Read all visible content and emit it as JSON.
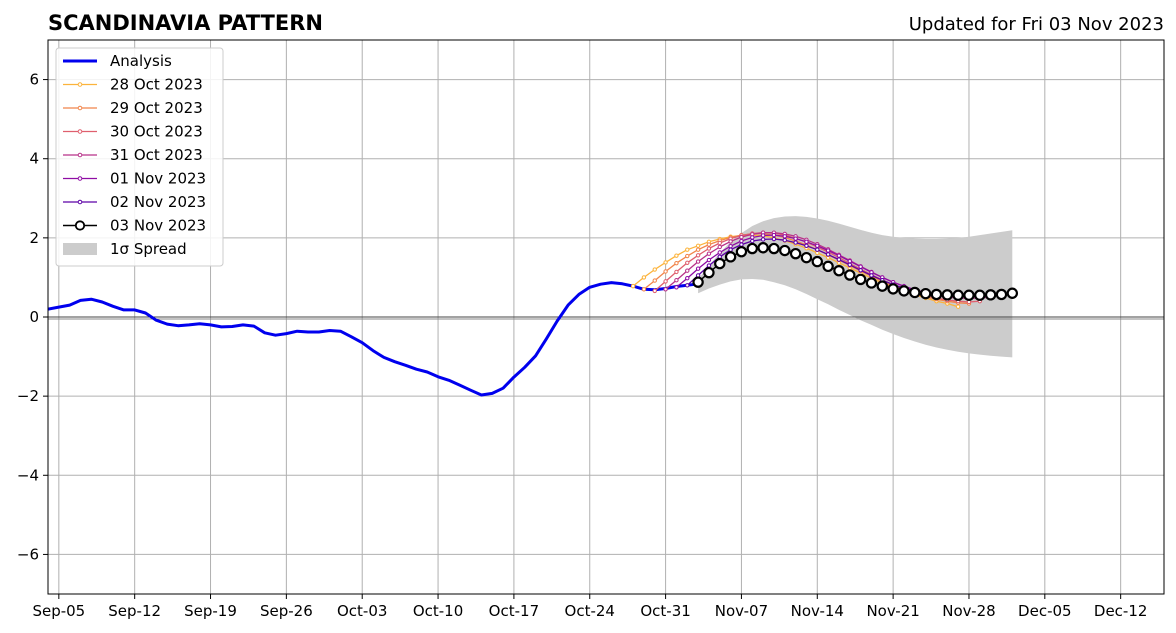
{
  "chart_data": {
    "type": "line",
    "title": "SCANDINAVIA PATTERN",
    "subtitle": "Updated for Fri 03 Nov 2023",
    "xlabel": "",
    "ylabel": "",
    "x_axis": {
      "type": "date",
      "range": [
        "2023-09-04",
        "2023-12-16"
      ],
      "ticks": [
        {
          "date": "2023-09-05",
          "label": "Sep-05"
        },
        {
          "date": "2023-09-12",
          "label": "Sep-12"
        },
        {
          "date": "2023-09-19",
          "label": "Sep-19"
        },
        {
          "date": "2023-09-26",
          "label": "Sep-26"
        },
        {
          "date": "2023-10-03",
          "label": "Oct-03"
        },
        {
          "date": "2023-10-10",
          "label": "Oct-10"
        },
        {
          "date": "2023-10-17",
          "label": "Oct-17"
        },
        {
          "date": "2023-10-24",
          "label": "Oct-24"
        },
        {
          "date": "2023-10-31",
          "label": "Oct-31"
        },
        {
          "date": "2023-11-07",
          "label": "Nov-07"
        },
        {
          "date": "2023-11-14",
          "label": "Nov-14"
        },
        {
          "date": "2023-11-21",
          "label": "Nov-21"
        },
        {
          "date": "2023-11-28",
          "label": "Nov-28"
        },
        {
          "date": "2023-12-05",
          "label": "Dec-05"
        },
        {
          "date": "2023-12-12",
          "label": "Dec-12"
        }
      ]
    },
    "y_axis": {
      "range": [
        -7,
        7
      ],
      "ticks": [
        {
          "value": -6,
          "label": "−6"
        },
        {
          "value": -4,
          "label": "−4"
        },
        {
          "value": -2,
          "label": "−2"
        },
        {
          "value": 0,
          "label": "0"
        },
        {
          "value": 2,
          "label": "2"
        },
        {
          "value": 4,
          "label": "4"
        },
        {
          "value": 6,
          "label": "6"
        }
      ]
    },
    "grid": true,
    "zero_line": true,
    "legend_position": "top-left",
    "legend": [
      {
        "label": "Analysis",
        "color": "#0000ee",
        "style": "line"
      },
      {
        "label": "28 Oct 2023",
        "color": "#fcb33b",
        "style": "dot-line"
      },
      {
        "label": "29 Oct 2023",
        "color": "#f1854b",
        "style": "dot-line"
      },
      {
        "label": "30 Oct 2023",
        "color": "#df5f6e",
        "style": "dot-line"
      },
      {
        "label": "31 Oct 2023",
        "color": "#b83289",
        "style": "dot-line"
      },
      {
        "label": "01 Nov 2023",
        "color": "#8f0da4",
        "style": "dot-line"
      },
      {
        "label": "02 Nov 2023",
        "color": "#5c01a6",
        "style": "dot-line"
      },
      {
        "label": "03 Nov 2023",
        "color": "#000000",
        "style": "circle-line"
      },
      {
        "label": "1σ Spread",
        "color": "#cccccc",
        "style": "patch"
      }
    ],
    "series": [
      {
        "name": "Analysis",
        "color": "#0000ee",
        "x": [
          "2023-09-04",
          "2023-09-05",
          "2023-09-06",
          "2023-09-07",
          "2023-09-08",
          "2023-09-09",
          "2023-09-10",
          "2023-09-11",
          "2023-09-12",
          "2023-09-13",
          "2023-09-14",
          "2023-09-15",
          "2023-09-16",
          "2023-09-17",
          "2023-09-18",
          "2023-09-19",
          "2023-09-20",
          "2023-09-21",
          "2023-09-22",
          "2023-09-23",
          "2023-09-24",
          "2023-09-25",
          "2023-09-26",
          "2023-09-27",
          "2023-09-28",
          "2023-09-29",
          "2023-09-30",
          "2023-10-01",
          "2023-10-02",
          "2023-10-03",
          "2023-10-04",
          "2023-10-05",
          "2023-10-06",
          "2023-10-07",
          "2023-10-08",
          "2023-10-09",
          "2023-10-10",
          "2023-10-11",
          "2023-10-12",
          "2023-10-13",
          "2023-10-14",
          "2023-10-15",
          "2023-10-16",
          "2023-10-17",
          "2023-10-18",
          "2023-10-19",
          "2023-10-20",
          "2023-10-21",
          "2023-10-22",
          "2023-10-23",
          "2023-10-24",
          "2023-10-25",
          "2023-10-26",
          "2023-10-27",
          "2023-10-28",
          "2023-10-29",
          "2023-10-30",
          "2023-10-31",
          "2023-11-01",
          "2023-11-02",
          "2023-11-03"
        ],
        "y": [
          0.2,
          0.25,
          0.3,
          0.42,
          0.45,
          0.38,
          0.27,
          0.18,
          0.18,
          0.1,
          -0.08,
          -0.18,
          -0.22,
          -0.2,
          -0.17,
          -0.2,
          -0.25,
          -0.24,
          -0.2,
          -0.23,
          -0.4,
          -0.46,
          -0.42,
          -0.36,
          -0.38,
          -0.38,
          -0.34,
          -0.36,
          -0.5,
          -0.65,
          -0.85,
          -1.02,
          -1.13,
          -1.22,
          -1.32,
          -1.39,
          -1.51,
          -1.6,
          -1.72,
          -1.85,
          -1.97,
          -1.93,
          -1.8,
          -1.52,
          -1.27,
          -0.98,
          -0.55,
          -0.1,
          0.3,
          0.57,
          0.75,
          0.83,
          0.87,
          0.84,
          0.78,
          0.7,
          0.69,
          0.72,
          0.77,
          0.8,
          0.84
        ]
      },
      {
        "name": "28 Oct 2023",
        "color": "#fcb33b",
        "x": [
          "2023-10-28",
          "2023-10-29",
          "2023-10-30",
          "2023-10-31",
          "2023-11-01",
          "2023-11-02",
          "2023-11-03",
          "2023-11-04",
          "2023-11-05",
          "2023-11-06",
          "2023-11-07",
          "2023-11-08",
          "2023-11-09",
          "2023-11-10",
          "2023-11-11",
          "2023-11-12",
          "2023-11-13",
          "2023-11-14",
          "2023-11-15",
          "2023-11-16",
          "2023-11-17",
          "2023-11-18",
          "2023-11-19",
          "2023-11-20",
          "2023-11-21",
          "2023-11-22",
          "2023-11-23",
          "2023-11-24",
          "2023-11-25",
          "2023-11-26",
          "2023-11-27"
        ],
        "y": [
          0.78,
          1.0,
          1.2,
          1.38,
          1.55,
          1.7,
          1.8,
          1.9,
          1.97,
          2.03,
          2.06,
          2.07,
          2.05,
          2.0,
          1.93,
          1.84,
          1.74,
          1.62,
          1.5,
          1.37,
          1.24,
          1.11,
          0.98,
          0.86,
          0.75,
          0.65,
          0.56,
          0.48,
          0.4,
          0.34,
          0.26
        ]
      },
      {
        "name": "29 Oct 2023",
        "color": "#f1854b",
        "x": [
          "2023-10-29",
          "2023-10-30",
          "2023-10-31",
          "2023-11-01",
          "2023-11-02",
          "2023-11-03",
          "2023-11-04",
          "2023-11-05",
          "2023-11-06",
          "2023-11-07",
          "2023-11-08",
          "2023-11-09",
          "2023-11-10",
          "2023-11-11",
          "2023-11-12",
          "2023-11-13",
          "2023-11-14",
          "2023-11-15",
          "2023-11-16",
          "2023-11-17",
          "2023-11-18",
          "2023-11-19",
          "2023-11-20",
          "2023-11-21",
          "2023-11-22",
          "2023-11-23",
          "2023-11-24",
          "2023-11-25",
          "2023-11-26",
          "2023-11-27",
          "2023-11-28"
        ],
        "y": [
          0.7,
          0.92,
          1.15,
          1.36,
          1.54,
          1.7,
          1.83,
          1.93,
          2.01,
          2.07,
          2.1,
          2.1,
          2.07,
          2.01,
          1.92,
          1.82,
          1.7,
          1.57,
          1.44,
          1.3,
          1.16,
          1.03,
          0.9,
          0.78,
          0.68,
          0.59,
          0.51,
          0.45,
          0.4,
          0.36,
          0.34
        ]
      },
      {
        "name": "30 Oct 2023",
        "color": "#df5f6e",
        "x": [
          "2023-10-30",
          "2023-10-31",
          "2023-11-01",
          "2023-11-02",
          "2023-11-03",
          "2023-11-04",
          "2023-11-05",
          "2023-11-06",
          "2023-11-07",
          "2023-11-08",
          "2023-11-09",
          "2023-11-10",
          "2023-11-11",
          "2023-11-12",
          "2023-11-13",
          "2023-11-14",
          "2023-11-15",
          "2023-11-16",
          "2023-11-17",
          "2023-11-18",
          "2023-11-19",
          "2023-11-20",
          "2023-11-21",
          "2023-11-22",
          "2023-11-23",
          "2023-11-24",
          "2023-11-25",
          "2023-11-26",
          "2023-11-27",
          "2023-11-28",
          "2023-11-29"
        ],
        "y": [
          0.66,
          0.9,
          1.14,
          1.37,
          1.56,
          1.73,
          1.87,
          1.98,
          2.06,
          2.11,
          2.13,
          2.12,
          2.07,
          1.99,
          1.89,
          1.77,
          1.64,
          1.5,
          1.35,
          1.21,
          1.07,
          0.94,
          0.82,
          0.71,
          0.62,
          0.54,
          0.48,
          0.43,
          0.4,
          0.38,
          0.4
        ]
      },
      {
        "name": "31 Oct 2023",
        "color": "#b83289",
        "x": [
          "2023-10-31",
          "2023-11-01",
          "2023-11-02",
          "2023-11-03",
          "2023-11-04",
          "2023-11-05",
          "2023-11-06",
          "2023-11-07",
          "2023-11-08",
          "2023-11-09",
          "2023-11-10",
          "2023-11-11",
          "2023-11-12",
          "2023-11-13",
          "2023-11-14",
          "2023-11-15",
          "2023-11-16",
          "2023-11-17",
          "2023-11-18",
          "2023-11-19",
          "2023-11-20",
          "2023-11-21",
          "2023-11-22",
          "2023-11-23",
          "2023-11-24",
          "2023-11-25",
          "2023-11-26",
          "2023-11-27",
          "2023-11-28",
          "2023-11-29",
          "2023-11-30"
        ],
        "y": [
          0.7,
          0.93,
          1.17,
          1.4,
          1.6,
          1.77,
          1.91,
          2.02,
          2.09,
          2.13,
          2.13,
          2.1,
          2.04,
          1.95,
          1.84,
          1.71,
          1.57,
          1.43,
          1.28,
          1.14,
          1.0,
          0.88,
          0.77,
          0.67,
          0.6,
          0.54,
          0.5,
          0.48,
          0.47,
          0.48,
          0.5
        ]
      },
      {
        "name": "01 Nov 2023",
        "color": "#8f0da4",
        "x": [
          "2023-11-01",
          "2023-11-02",
          "2023-11-03",
          "2023-11-04",
          "2023-11-05",
          "2023-11-06",
          "2023-11-07",
          "2023-11-08",
          "2023-11-09",
          "2023-11-10",
          "2023-11-11",
          "2023-11-12",
          "2023-11-13",
          "2023-11-14",
          "2023-11-15",
          "2023-11-16",
          "2023-11-17",
          "2023-11-18",
          "2023-11-19",
          "2023-11-20",
          "2023-11-21",
          "2023-11-22",
          "2023-11-23",
          "2023-11-24",
          "2023-11-25",
          "2023-11-26",
          "2023-11-27",
          "2023-11-28",
          "2023-11-29",
          "2023-11-30",
          "2023-12-01"
        ],
        "y": [
          0.75,
          0.98,
          1.22,
          1.44,
          1.63,
          1.79,
          1.92,
          2.01,
          2.06,
          2.07,
          2.04,
          1.98,
          1.9,
          1.8,
          1.68,
          1.55,
          1.41,
          1.27,
          1.13,
          1.0,
          0.88,
          0.78,
          0.69,
          0.62,
          0.57,
          0.54,
          0.52,
          0.52,
          0.53,
          0.55,
          0.57
        ]
      },
      {
        "name": "02 Nov 2023",
        "color": "#5c01a6",
        "x": [
          "2023-11-02",
          "2023-11-03",
          "2023-11-04",
          "2023-11-05",
          "2023-11-06",
          "2023-11-07",
          "2023-11-08",
          "2023-11-09",
          "2023-11-10",
          "2023-11-11",
          "2023-11-12",
          "2023-11-13",
          "2023-11-14",
          "2023-11-15",
          "2023-11-16",
          "2023-11-17",
          "2023-11-18",
          "2023-11-19",
          "2023-11-20",
          "2023-11-21",
          "2023-11-22",
          "2023-11-23",
          "2023-11-24",
          "2023-11-25",
          "2023-11-26",
          "2023-11-27",
          "2023-11-28",
          "2023-11-29",
          "2023-11-30",
          "2023-12-01",
          "2023-12-02"
        ],
        "y": [
          0.8,
          1.05,
          1.3,
          1.52,
          1.7,
          1.83,
          1.92,
          1.96,
          1.97,
          1.94,
          1.88,
          1.8,
          1.7,
          1.58,
          1.45,
          1.32,
          1.18,
          1.05,
          0.93,
          0.82,
          0.73,
          0.66,
          0.61,
          0.58,
          0.56,
          0.55,
          0.55,
          0.56,
          0.57,
          0.59,
          0.6
        ]
      },
      {
        "name": "03 Nov 2023",
        "color": "#000000",
        "x": [
          "2023-11-03",
          "2023-11-04",
          "2023-11-05",
          "2023-11-06",
          "2023-11-07",
          "2023-11-08",
          "2023-11-09",
          "2023-11-10",
          "2023-11-11",
          "2023-11-12",
          "2023-11-13",
          "2023-11-14",
          "2023-11-15",
          "2023-11-16",
          "2023-11-17",
          "2023-11-18",
          "2023-11-19",
          "2023-11-20",
          "2023-11-21",
          "2023-11-22",
          "2023-11-23",
          "2023-11-24",
          "2023-11-25",
          "2023-11-26",
          "2023-11-27",
          "2023-11-28",
          "2023-11-29",
          "2023-11-30",
          "2023-12-01",
          "2023-12-02"
        ],
        "y": [
          0.88,
          1.12,
          1.35,
          1.52,
          1.65,
          1.73,
          1.75,
          1.73,
          1.68,
          1.6,
          1.5,
          1.4,
          1.28,
          1.17,
          1.06,
          0.95,
          0.86,
          0.78,
          0.71,
          0.66,
          0.62,
          0.59,
          0.57,
          0.56,
          0.55,
          0.55,
          0.55,
          0.56,
          0.57,
          0.6
        ]
      }
    ],
    "spread": {
      "name": "1σ Spread",
      "color": "#cccccc",
      "x": [
        "2023-11-03",
        "2023-11-04",
        "2023-11-05",
        "2023-11-06",
        "2023-11-07",
        "2023-11-08",
        "2023-11-09",
        "2023-11-10",
        "2023-11-11",
        "2023-11-12",
        "2023-11-13",
        "2023-11-14",
        "2023-11-15",
        "2023-11-16",
        "2023-11-17",
        "2023-11-18",
        "2023-11-19",
        "2023-11-20",
        "2023-11-21",
        "2023-11-22",
        "2023-11-23",
        "2023-11-24",
        "2023-11-25",
        "2023-11-26",
        "2023-11-27",
        "2023-11-28",
        "2023-11-29",
        "2023-11-30",
        "2023-12-01",
        "2023-12-02"
      ],
      "upper": [
        0.95,
        1.3,
        1.62,
        1.9,
        2.12,
        2.3,
        2.42,
        2.5,
        2.54,
        2.55,
        2.53,
        2.49,
        2.43,
        2.36,
        2.28,
        2.2,
        2.13,
        2.07,
        2.03,
        2.0,
        1.98,
        1.97,
        1.97,
        1.98,
        2.0,
        2.03,
        2.07,
        2.11,
        2.15,
        2.19
      ],
      "lower": [
        0.6,
        0.72,
        0.82,
        0.9,
        0.95,
        0.96,
        0.94,
        0.88,
        0.8,
        0.7,
        0.58,
        0.45,
        0.32,
        0.18,
        0.05,
        -0.08,
        -0.2,
        -0.32,
        -0.43,
        -0.53,
        -0.62,
        -0.7,
        -0.77,
        -0.83,
        -0.88,
        -0.92,
        -0.95,
        -0.98,
        -1.0,
        -1.02
      ]
    }
  }
}
